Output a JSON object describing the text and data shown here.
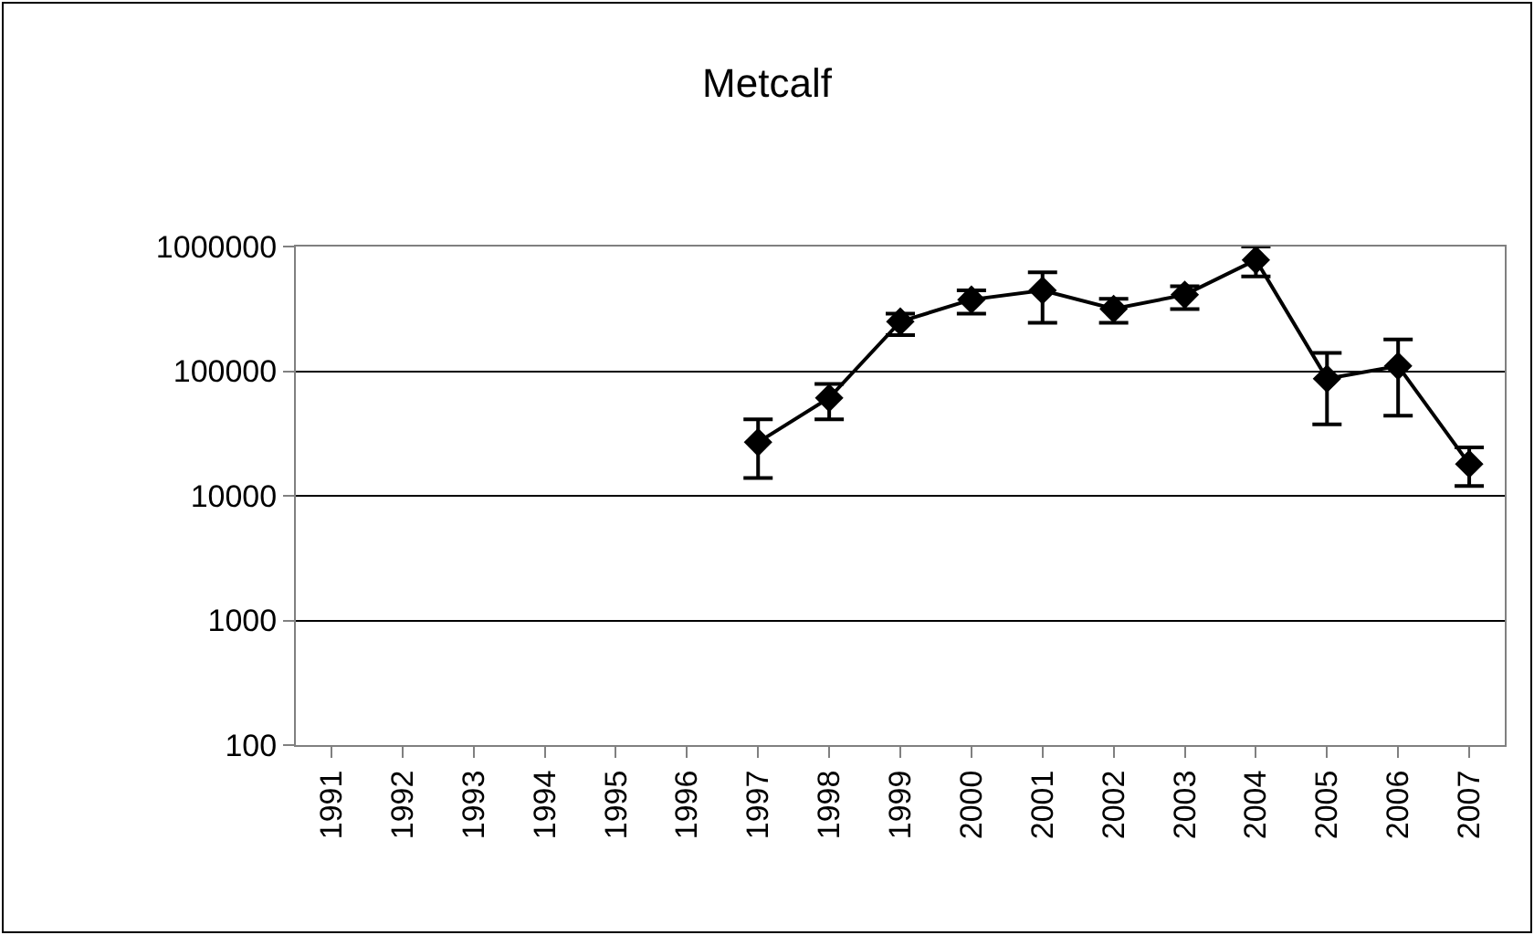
{
  "chart_data": {
    "type": "line",
    "title": "Metcalf",
    "categories": [
      "1991",
      "1992",
      "1993",
      "1994",
      "1995",
      "1996",
      "1997",
      "1998",
      "1999",
      "2000",
      "2001",
      "2002",
      "2003",
      "2004",
      "2005",
      "2006",
      "2007"
    ],
    "series": [
      {
        "color": "#000000",
        "values": [
          null,
          null,
          null,
          null,
          null,
          null,
          26900,
          61000,
          250000,
          375000,
          445000,
          316000,
          410000,
          780000,
          87000,
          110000,
          18000
        ],
        "errors": [
          null,
          null,
          null,
          null,
          null,
          null,
          [
            13900,
            41000
          ],
          [
            41000,
            79000
          ],
          [
            195000,
            290000
          ],
          [
            290000,
            445000
          ],
          [
            245000,
            620000
          ],
          [
            245000,
            380000
          ],
          [
            315000,
            480000
          ],
          [
            575000,
            1000000
          ],
          [
            37500,
            140000
          ],
          [
            44000,
            180000
          ],
          [
            12000,
            24500
          ]
        ]
      }
    ],
    "log": true,
    "ylim": [
      100,
      1000000
    ],
    "yticks": [
      100,
      1000,
      10000,
      100000,
      1000000
    ],
    "grid": "y",
    "marker": "diamond",
    "line_style": "solid"
  }
}
